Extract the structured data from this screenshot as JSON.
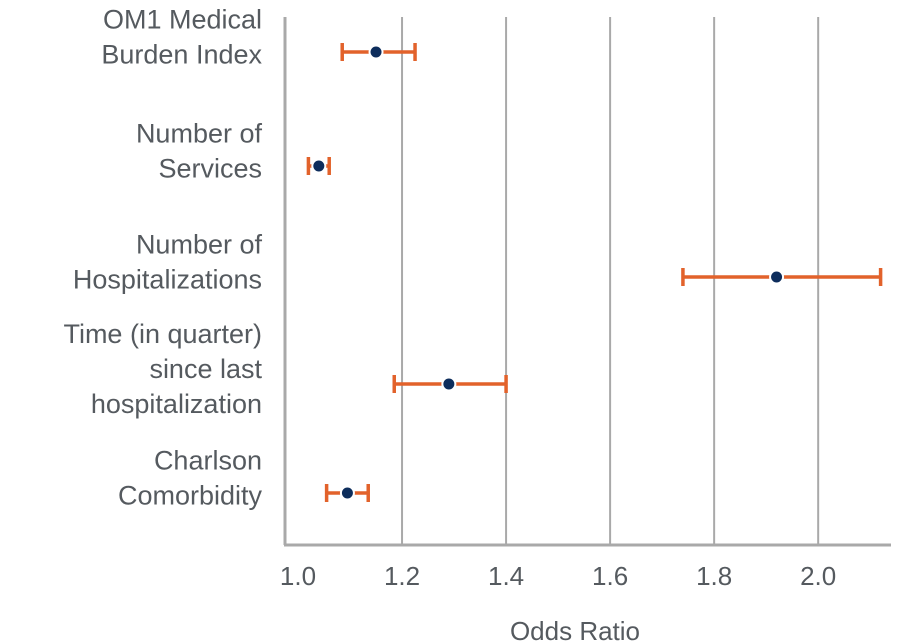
{
  "chart_data": {
    "type": "forest",
    "xlabel": "Odds Ratio",
    "ylabel": "",
    "xlim": [
      0.975,
      2.14
    ],
    "xticks": [
      "1.0",
      "1.2",
      "1.4",
      "1.6",
      "1.8",
      "2.0"
    ],
    "grid": true,
    "colors": {
      "point": "#0d2d5c",
      "errorbar": "#e2622b",
      "grid": "#a9a9a9",
      "text": "#555a5f"
    },
    "categories": [
      {
        "label_lines": [
          "OM1 Medical",
          "Burden Index"
        ],
        "estimate": 1.15,
        "lower": 1.085,
        "upper": 1.225
      },
      {
        "label_lines": [
          "Number of",
          "Services"
        ],
        "estimate": 1.04,
        "lower": 1.02,
        "upper": 1.06
      },
      {
        "label_lines": [
          "Number of",
          "Hospitalizations"
        ],
        "estimate": 1.92,
        "lower": 1.74,
        "upper": 2.12
      },
      {
        "label_lines": [
          "Time (in quarter)",
          "since last",
          "hospitalization"
        ],
        "estimate": 1.29,
        "lower": 1.185,
        "upper": 1.4
      },
      {
        "label_lines": [
          "Charlson",
          "Comorbidity"
        ],
        "estimate": 1.095,
        "lower": 1.055,
        "upper": 1.135
      }
    ]
  }
}
